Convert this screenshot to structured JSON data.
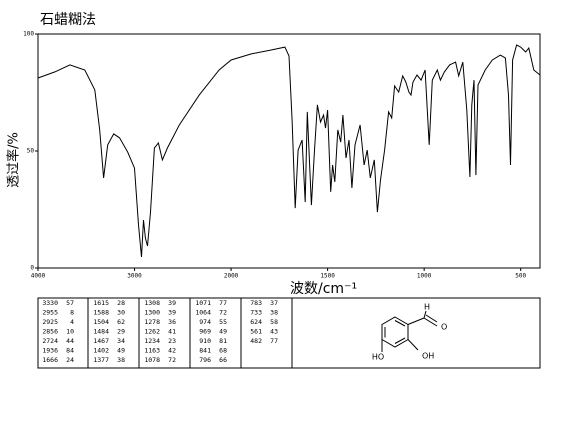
{
  "chart_data": {
    "type": "line",
    "title": "石蜡糊法",
    "x_label": "波数/cm⁻¹",
    "y_label": "透过率/%",
    "xlim": [
      4000,
      400
    ],
    "x_scale_break": 2000,
    "xticks": [
      4000,
      3000,
      2000,
      1500,
      1000,
      500
    ],
    "ylim": [
      0,
      100
    ],
    "yticks": [
      0,
      50,
      100
    ],
    "series": [
      {
        "color": "#000000",
        "x": [
          4000,
          3825,
          3670,
          3515,
          3412,
          3361,
          3320,
          3278,
          3216,
          3155,
          3072,
          3000,
          2959,
          2928,
          2907,
          2887,
          2866,
          2835,
          2794,
          2753,
          2711,
          2660,
          2536,
          2330,
          2124,
          2000,
          1895,
          1789,
          1721,
          1700,
          1684,
          1668,
          1653,
          1632,
          1616,
          1605,
          1584,
          1568,
          1553,
          1537,
          1521,
          1511,
          1500,
          1484,
          1474,
          1463,
          1447,
          1432,
          1421,
          1405,
          1389,
          1374,
          1358,
          1332,
          1311,
          1295,
          1279,
          1258,
          1242,
          1226,
          1205,
          1184,
          1168,
          1153,
          1132,
          1111,
          1095,
          1079,
          1068,
          1058,
          1037,
          1016,
          995,
          974,
          958,
          932,
          916,
          895,
          868,
          837,
          821,
          800,
          779,
          763,
          753,
          742,
          732,
          721,
          684,
          647,
          605,
          579,
          563,
          553,
          542,
          521,
          500,
          474,
          458,
          432,
          400
        ],
        "values": [
          81.2,
          83.8,
          86.8,
          84.6,
          76.1,
          59,
          38.5,
          52.6,
          57.3,
          55.6,
          49.6,
          42.7,
          18.4,
          4.7,
          20.5,
          12.8,
          9.4,
          23.9,
          51.3,
          53.4,
          46.2,
          51.3,
          61.1,
          73.9,
          84.6,
          88.9,
          91.5,
          93.2,
          94.4,
          90.6,
          63.2,
          25.6,
          50.4,
          54.7,
          28.2,
          66.7,
          26.9,
          50.4,
          69.7,
          62.4,
          65.4,
          59.8,
          67.5,
          32.5,
          44,
          36.8,
          59,
          53.8,
          65.4,
          47,
          54.7,
          34.2,
          52.6,
          61.1,
          44,
          50.4,
          38.5,
          46.2,
          23.9,
          37.6,
          50.4,
          66.7,
          64.1,
          77.8,
          75.2,
          82.1,
          79.5,
          75.2,
          73.9,
          79.5,
          82.5,
          80.3,
          84.6,
          52.6,
          80.3,
          84.6,
          80.3,
          83.8,
          86.8,
          88,
          82.1,
          88,
          67.5,
          38.9,
          69.7,
          80.3,
          39.7,
          78.2,
          84.6,
          88.9,
          91,
          89.7,
          73.9,
          44,
          88.9,
          95.3,
          94.4,
          92.3,
          94,
          84.6,
          82.5
        ]
      }
    ]
  },
  "peak_table": {
    "columns": [
      [
        [
          3330,
          57
        ],
        [
          2955,
          8
        ],
        [
          2925,
          4
        ],
        [
          2856,
          10
        ],
        [
          2724,
          44
        ],
        [
          1936,
          84
        ],
        [
          1666,
          24
        ]
      ],
      [
        [
          1615,
          28
        ],
        [
          1588,
          30
        ],
        [
          1504,
          62
        ],
        [
          1484,
          29
        ],
        [
          1467,
          34
        ],
        [
          1402,
          49
        ],
        [
          1377,
          38
        ]
      ],
      [
        [
          1308,
          39
        ],
        [
          1300,
          39
        ],
        [
          1278,
          36
        ],
        [
          1262,
          41
        ],
        [
          1234,
          23
        ],
        [
          1163,
          42
        ],
        [
          1078,
          72
        ]
      ],
      [
        [
          1071,
          77
        ],
        [
          1064,
          72
        ],
        [
          974,
          55
        ],
        [
          969,
          49
        ],
        [
          910,
          81
        ],
        [
          841,
          68
        ],
        [
          796,
          66
        ]
      ],
      [
        [
          783,
          37
        ],
        [
          733,
          38
        ],
        [
          624,
          58
        ],
        [
          561,
          43
        ],
        [
          482,
          77
        ]
      ]
    ]
  },
  "structure": {
    "aldehyde_h": "H",
    "aldehyde_o": "O",
    "hydroxyl_1": "HO",
    "hydroxyl_2": "OH"
  }
}
